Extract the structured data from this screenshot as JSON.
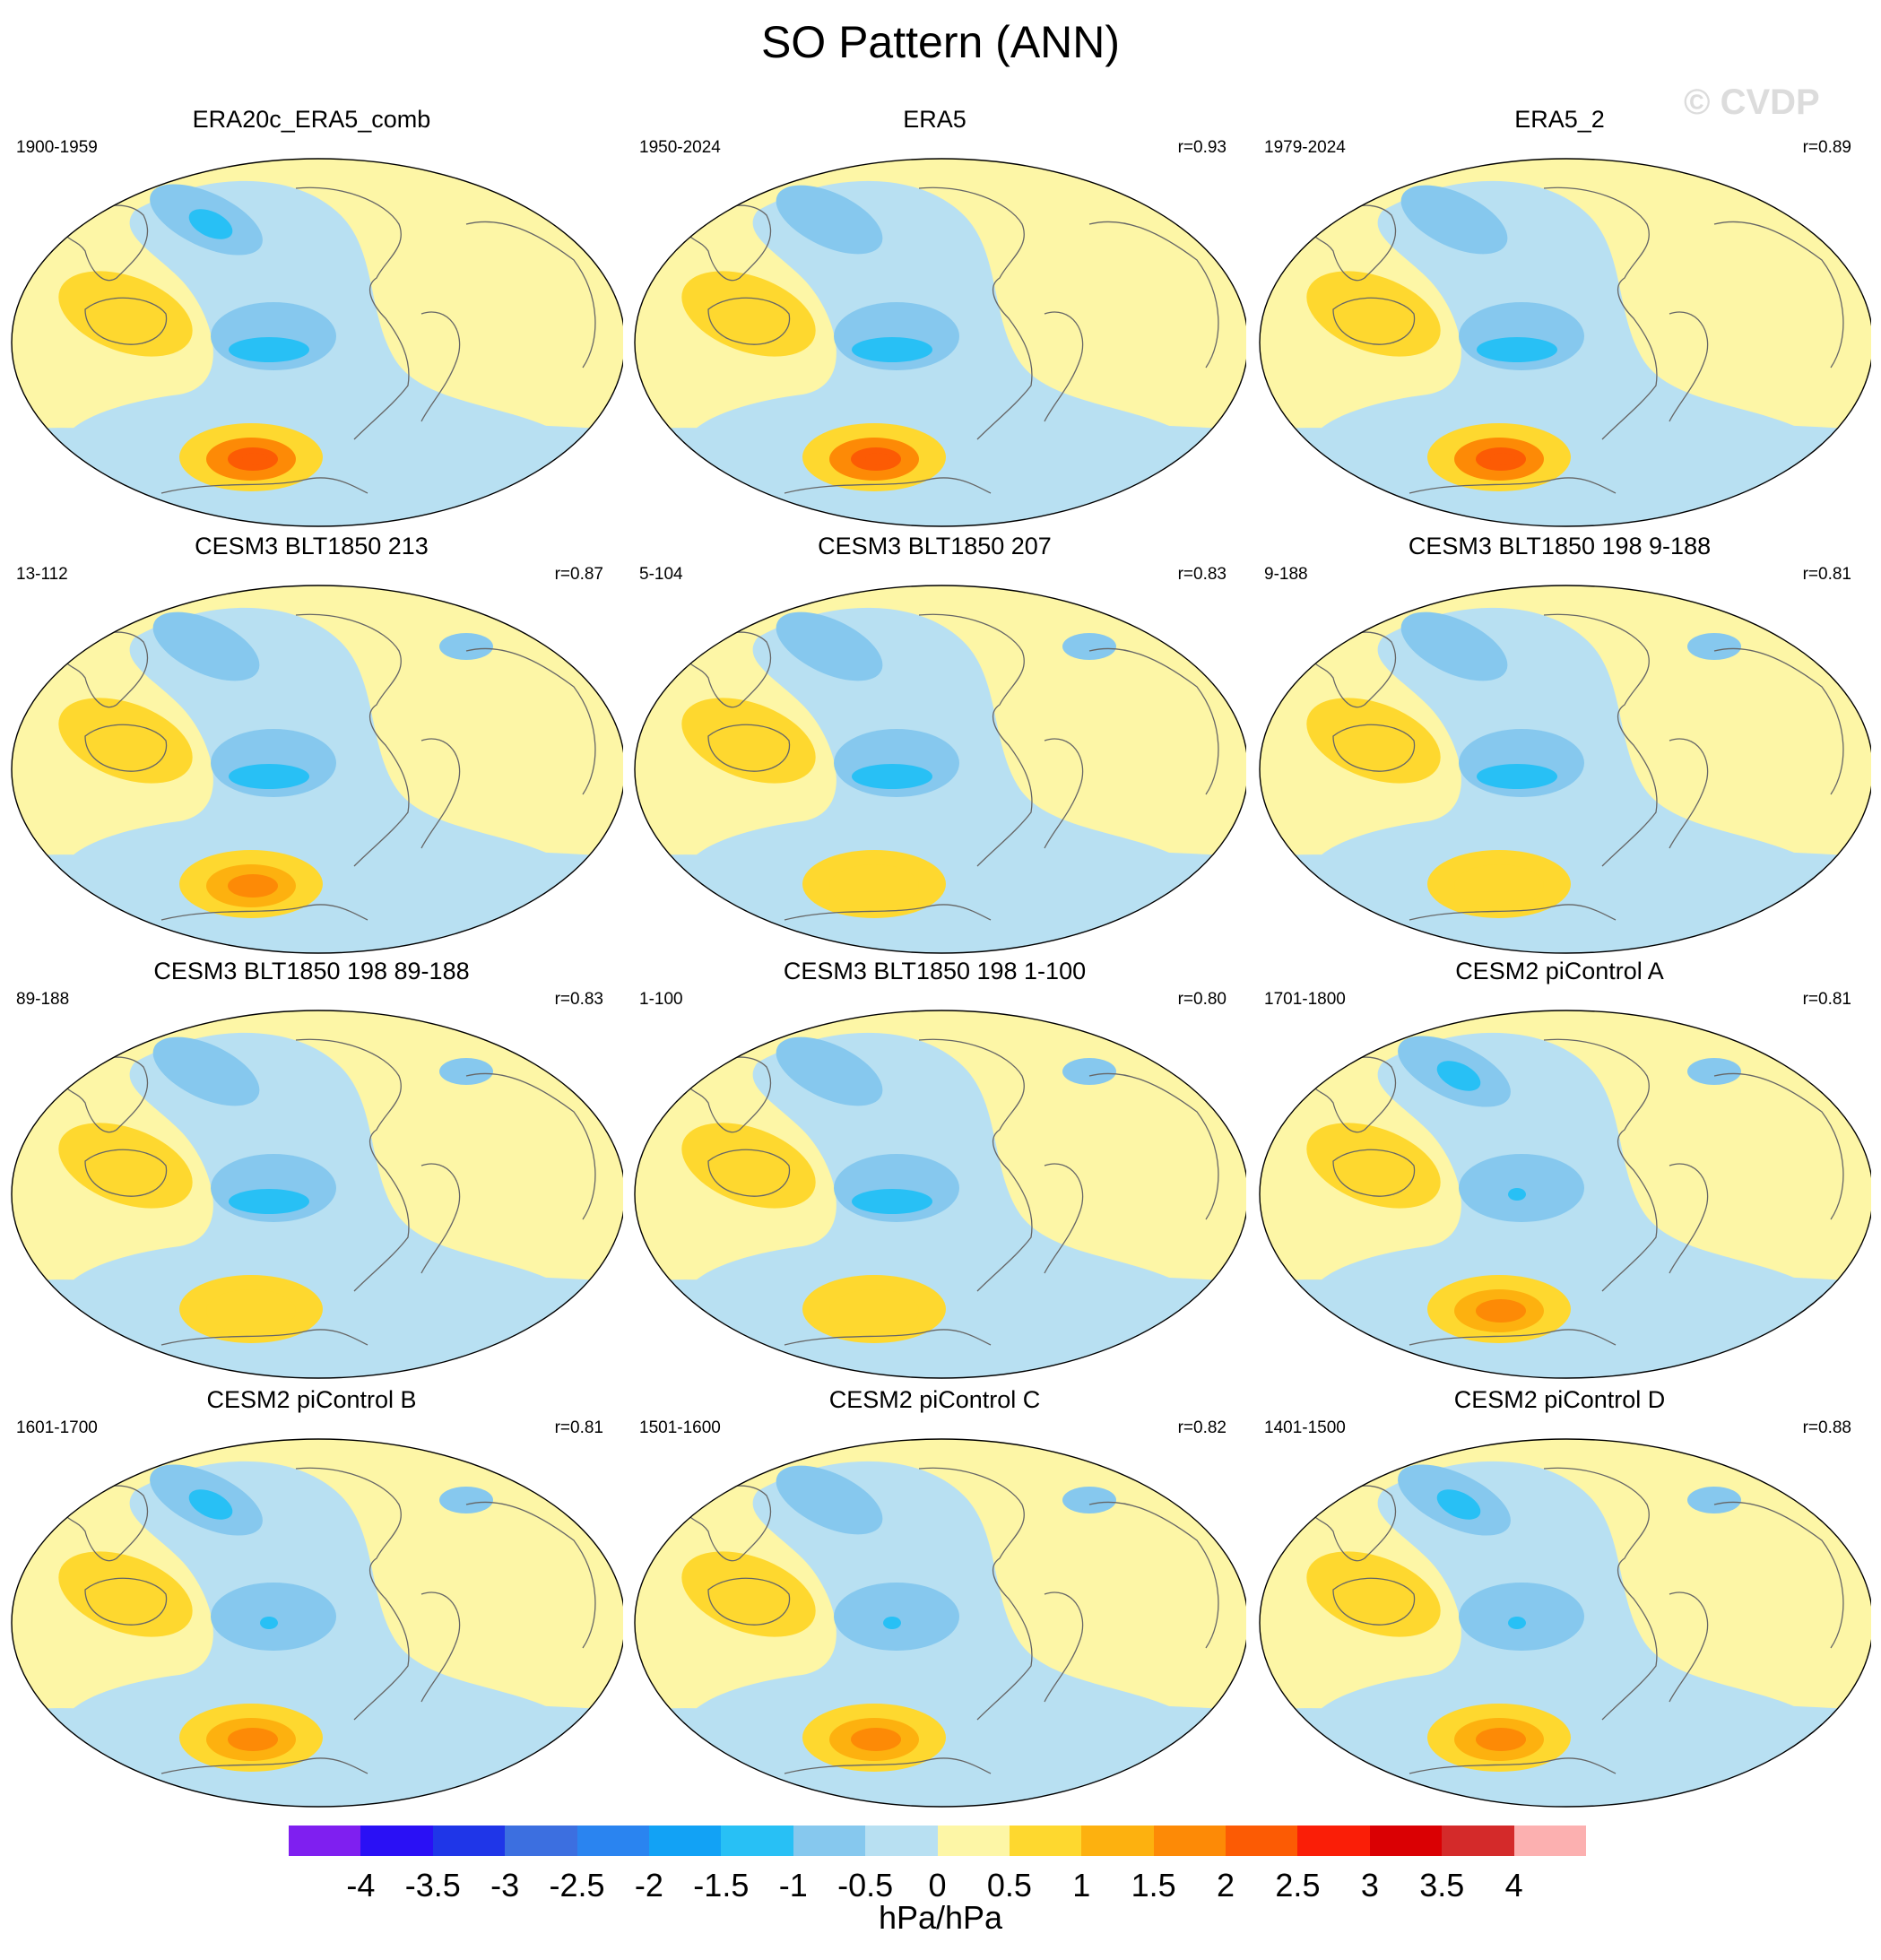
{
  "title": "SO Pattern (ANN)",
  "watermark": "© CVDP",
  "panels": [
    {
      "title": "ERA20c_ERA5_comb",
      "years": "1900-1959",
      "r": ""
    },
    {
      "title": "ERA5",
      "years": "1950-2024",
      "r": "r=0.93"
    },
    {
      "title": "ERA5_2",
      "years": "1979-2024",
      "r": "r=0.89"
    },
    {
      "title": "CESM3 BLT1850 213",
      "years": "13-112",
      "r": "r=0.87"
    },
    {
      "title": "CESM3 BLT1850 207",
      "years": "5-104",
      "r": "r=0.83"
    },
    {
      "title": "CESM3 BLT1850 198 9-188",
      "years": "9-188",
      "r": "r=0.81"
    },
    {
      "title": "CESM3 BLT1850 198 89-188",
      "years": "89-188",
      "r": "r=0.83"
    },
    {
      "title": "CESM3 BLT1850 198 1-100",
      "years": "1-100",
      "r": "r=0.80"
    },
    {
      "title": "CESM2 piControl A",
      "years": "1701-1800",
      "r": "r=0.81"
    },
    {
      "title": "CESM2 piControl B",
      "years": "1601-1700",
      "r": "r=0.81"
    },
    {
      "title": "CESM2 piControl C",
      "years": "1501-1600",
      "r": "r=0.82"
    },
    {
      "title": "CESM2 piControl D",
      "years": "1401-1500",
      "r": "r=0.88"
    }
  ],
  "colorbar": {
    "labels": [
      "-4",
      "-3.5",
      "-3",
      "-2.5",
      "-2",
      "-1.5",
      "-1",
      "-0.5",
      "0",
      "0.5",
      "1",
      "1.5",
      "2",
      "2.5",
      "3",
      "3.5",
      "4"
    ],
    "colors": [
      "#7f1ff0",
      "#2a10f5",
      "#1f36e8",
      "#3c6fe0",
      "#2a84f0",
      "#12a2f5",
      "#28c0f5",
      "#86c8ee",
      "#b8e0f2",
      "#fdf6a6",
      "#fed82f",
      "#fdb10f",
      "#fd8a06",
      "#fc5b04",
      "#fa1e07",
      "#da0003",
      "#d42a2a",
      "#fcb0b0"
    ],
    "units": "hPa/hPa"
  },
  "palette": {
    "positive_light": "#fdf6a6",
    "positive_mid": "#fed82f",
    "positive_strong": "#fdb10f",
    "positive_stronger": "#fd8a06",
    "positive_max": "#fc5b04",
    "negative_light": "#b8e0f2",
    "negative_mid": "#86c8ee",
    "negative_strong": "#28c0f5",
    "negative_stronger": "#12a2f5",
    "coast": "#666666"
  },
  "panel_intensity": [
    {
      "aus": 1,
      "sam": 4,
      "npac": 2,
      "spac": 2,
      "natl": 0
    },
    {
      "aus": 2,
      "sam": 4,
      "npac": 1,
      "spac": 2,
      "natl": 0
    },
    {
      "aus": 2,
      "sam": 4,
      "npac": 1,
      "spac": 2,
      "natl": 0
    },
    {
      "aus": 2,
      "sam": 3,
      "npac": 1,
      "spac": 2,
      "natl": 1
    },
    {
      "aus": 2,
      "sam": 2,
      "npac": 1,
      "spac": 2,
      "natl": 1
    },
    {
      "aus": 2,
      "sam": 2,
      "npac": 1,
      "spac": 2,
      "natl": 1
    },
    {
      "aus": 2,
      "sam": 2,
      "npac": 1,
      "spac": 2,
      "natl": 1
    },
    {
      "aus": 2,
      "sam": 2,
      "npac": 1,
      "spac": 2,
      "natl": 1
    },
    {
      "aus": 2,
      "sam": 3,
      "npac": 2,
      "spac": 1,
      "natl": 1
    },
    {
      "aus": 2,
      "sam": 3,
      "npac": 2,
      "spac": 1,
      "natl": 1
    },
    {
      "aus": 2,
      "sam": 3,
      "npac": 1,
      "spac": 1,
      "natl": 1
    },
    {
      "aus": 2,
      "sam": 3,
      "npac": 2,
      "spac": 1,
      "natl": 1
    }
  ]
}
